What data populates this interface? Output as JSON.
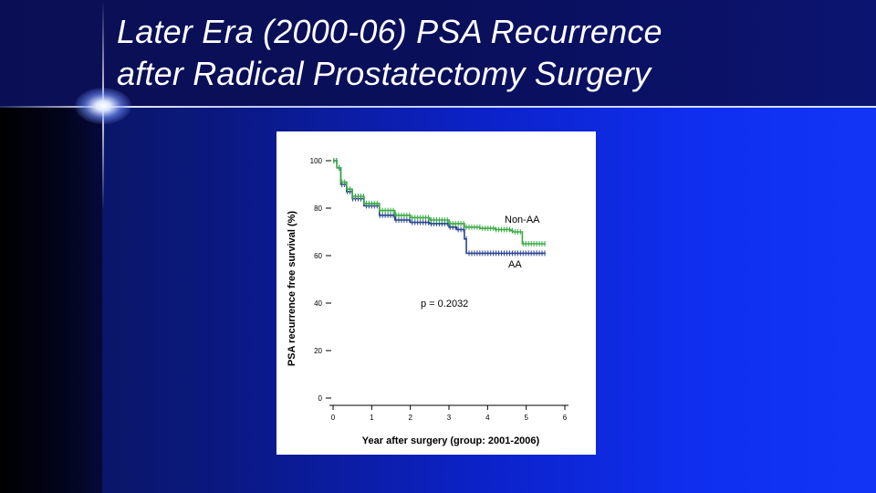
{
  "slide": {
    "title_line1": "Later Era (2000-06) PSA Recurrence",
    "title_line2": "after Radical Prostatectomy Surgery"
  },
  "colors": {
    "non_aa": "#3aaa45",
    "aa": "#2b4592",
    "title_text": "#ffffff"
  },
  "chart_data": {
    "type": "line",
    "subtype": "kaplan-meier",
    "title": "",
    "xlabel": "Year after surgery (group: 2001-2006)",
    "ylabel": "PSA recurrence free survival (%)",
    "xlim": [
      0,
      6
    ],
    "ylim": [
      0,
      100
    ],
    "xticks": [
      0,
      1,
      2,
      3,
      4,
      5,
      6
    ],
    "yticks": [
      0,
      20,
      40,
      60,
      80,
      100
    ],
    "annotation": "p = 0.2032",
    "series": [
      {
        "name": "Non-AA",
        "x": [
          0,
          0.1,
          0.2,
          0.35,
          0.5,
          0.8,
          1.2,
          1.6,
          2.0,
          2.5,
          3.0,
          3.4,
          3.8,
          4.2,
          4.6,
          4.65,
          4.85,
          4.9,
          5.5
        ],
        "y": [
          100,
          97,
          91,
          88,
          85,
          82,
          79,
          77,
          76,
          75,
          73.5,
          72,
          71.5,
          71,
          70.5,
          70,
          70,
          65,
          65
        ]
      },
      {
        "name": "AA",
        "x": [
          0,
          0.1,
          0.2,
          0.35,
          0.5,
          0.8,
          1.2,
          1.6,
          2.0,
          2.5,
          3.0,
          3.2,
          3.4,
          3.45,
          4.0,
          4.5,
          4.9,
          5.0,
          5.5
        ],
        "y": [
          100,
          97,
          90,
          87,
          84,
          81,
          77,
          75,
          74,
          73.5,
          72,
          71,
          67,
          61,
          61,
          61,
          61,
          61,
          61
        ]
      }
    ],
    "legend": "inline labels at right end of each curve"
  }
}
